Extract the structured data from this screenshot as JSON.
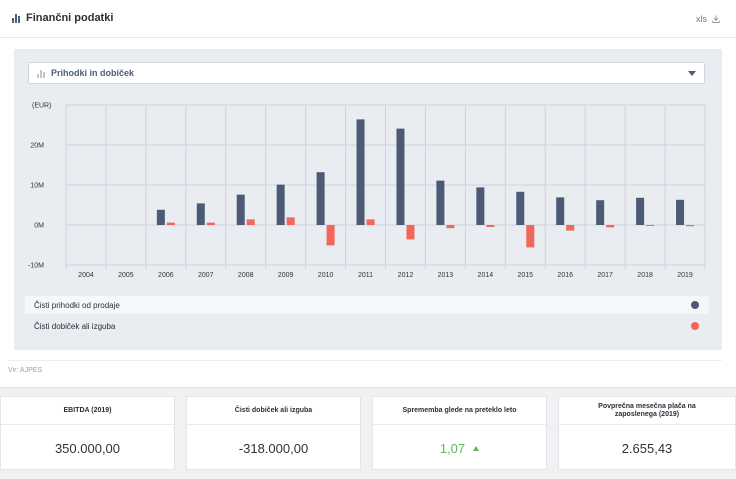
{
  "header": {
    "title": "Finančni podatki",
    "export_label": "xls"
  },
  "selector": {
    "selected": "Prihodki in dobiček"
  },
  "chart_data": {
    "type": "bar",
    "unit_label": "(EUR)",
    "categories": [
      "2004",
      "2005",
      "2006",
      "2007",
      "2008",
      "2009",
      "2010",
      "2011",
      "2012",
      "2013",
      "2014",
      "2015",
      "2016",
      "2017",
      "2018",
      "2019"
    ],
    "series": [
      {
        "name": "Čisti prihodki od prodaje",
        "color": "#4d5a75",
        "values": [
          null,
          null,
          3.8,
          5.4,
          7.6,
          10.1,
          13.2,
          26.4,
          24.1,
          11.1,
          9.4,
          8.3,
          6.9,
          6.2,
          6.8,
          6.3
        ]
      },
      {
        "name": "Čisti dobiček ali izguba",
        "color": "#f2675b",
        "values": [
          null,
          null,
          0.6,
          0.6,
          1.4,
          1.9,
          -5.1,
          1.4,
          -3.6,
          -0.8,
          -0.5,
          -5.6,
          -1.4,
          -0.6,
          -0.2,
          -0.3
        ]
      }
    ],
    "y_ticks": [
      -10,
      0,
      10,
      20
    ],
    "y_tick_labels": [
      "-10M",
      "0M",
      "10M",
      "20M"
    ],
    "ylim": [
      -10,
      30
    ]
  },
  "legend": [
    {
      "label": "Čisti prihodki od prodaje",
      "color": "#4d5a75"
    },
    {
      "label": "Čisti dobiček ali izguba",
      "color": "#f2675b"
    }
  ],
  "source": "Vir: AJPES",
  "cards": [
    {
      "title": "EBITDA (2019)",
      "value": "350.000,00"
    },
    {
      "title": "Čisti dobiček ali izguba",
      "value": "-318.000,00"
    },
    {
      "title": "Sprememba glede na preteklo leto",
      "value": "1,07",
      "trend": "up"
    },
    {
      "title": "Povprečna mesečna plača na zaposlenega (2019)",
      "value": "2.655,43"
    }
  ]
}
